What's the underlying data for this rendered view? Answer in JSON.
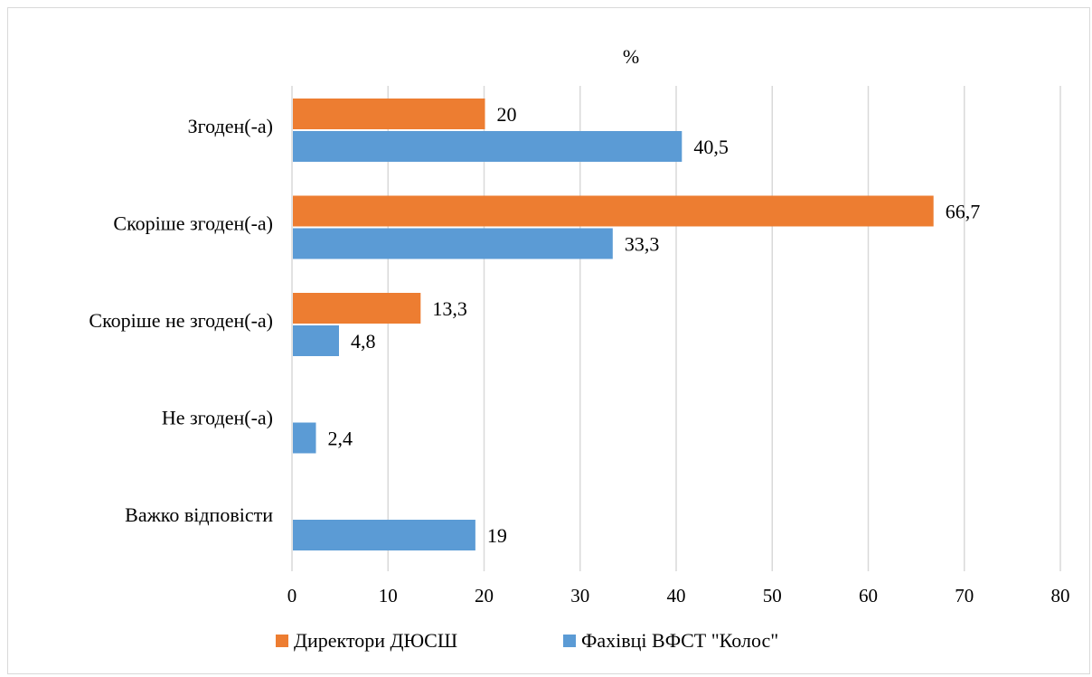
{
  "chart_data": {
    "type": "bar",
    "orientation": "horizontal",
    "title": "%",
    "categories": [
      "Згоден(-а)",
      "Скоріше згоден(-а)",
      "Скоріше не згоден(-а)",
      "Не згоден(-а)",
      "Важко відповісти"
    ],
    "series": [
      {
        "name": "Директори ДЮСШ",
        "color": "#ED7D31",
        "values": [
          20,
          66.7,
          13.3,
          null,
          null
        ],
        "labels": [
          "20",
          "66,7",
          "13,3",
          "",
          ""
        ]
      },
      {
        "name": "Фахівці ВФСТ \"Колос\"",
        "color": "#5B9BD5",
        "values": [
          40.5,
          33.3,
          4.8,
          2.4,
          19
        ],
        "labels": [
          "40,5",
          "33,3",
          "4,8",
          "2,4",
          "19"
        ]
      }
    ],
    "xlim": [
      0,
      80
    ],
    "xticks": [
      "0",
      "10",
      "20",
      "30",
      "40",
      "50",
      "60",
      "70",
      "80"
    ],
    "grid": true,
    "legend_position": "bottom"
  }
}
